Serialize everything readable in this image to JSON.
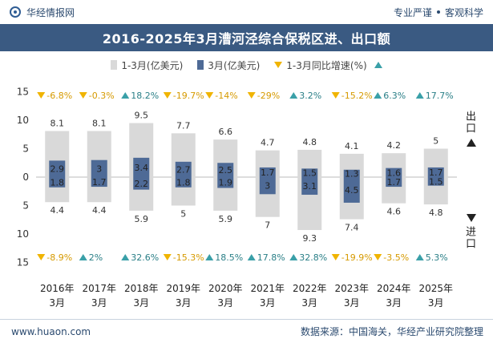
{
  "header": {
    "brand": "华经情报网",
    "tagline_left": "专业严谨",
    "tagline_right": "客观科学"
  },
  "title": "2016-2025年3月漕河泾综合保税区进、出口额",
  "legend": {
    "cum": "1-3月(亿美元)",
    "month": "3月(亿美元)",
    "yoy": "1-3月同比增速(%)"
  },
  "side_labels": {
    "export": "出口",
    "import": "进口"
  },
  "footer": {
    "url": "www.huaon.com",
    "source": "数据来源：中国海关，华经产业研究院整理"
  },
  "colors": {
    "cum_bar": "#d9d9d9",
    "month_bar": "#4e6a96",
    "yoy_down": "#f0b400",
    "yoy_up": "#3aa0a8",
    "title_bg": "#3a5a82"
  },
  "chart_data": {
    "type": "bar",
    "categories": [
      "2016年3月",
      "2017年3月",
      "2018年3月",
      "2019年3月",
      "2020年3月",
      "2021年3月",
      "2022年3月",
      "2023年3月",
      "2024年3月",
      "2025年3月"
    ],
    "ylim": [
      -15,
      15
    ],
    "y_ticks": [
      15,
      10,
      5,
      0,
      5,
      10,
      15
    ],
    "series": [
      {
        "name": "出口 1-3月(亿美元)",
        "values": [
          8.1,
          8.1,
          9.5,
          7.7,
          6.6,
          4.7,
          4.8,
          4.1,
          4.2,
          5
        ]
      },
      {
        "name": "出口 3月(亿美元)",
        "values": [
          2.9,
          3,
          3.4,
          2.7,
          2.5,
          1.7,
          1.5,
          1.3,
          1.6,
          1.7
        ]
      },
      {
        "name": "进口 1-3月(亿美元)",
        "values": [
          4.4,
          4.4,
          5.9,
          5,
          5.9,
          7,
          9.3,
          7.4,
          4.6,
          4.8
        ]
      },
      {
        "name": "进口 3月(亿美元)",
        "values": [
          1.8,
          1.7,
          2.2,
          1.8,
          1.9,
          3,
          3.1,
          4.5,
          1.7,
          1.5
        ]
      }
    ],
    "export_yoy": [
      "-6.8%",
      "-0.3%",
      "18.2%",
      "-19.7%",
      "-14%",
      "-29%",
      "3.2%",
      "-15.2%",
      "6.3%",
      "17.7%"
    ],
    "import_yoy": [
      "-8.9%",
      "2%",
      "32.6%",
      "-15.3%",
      "18.5%",
      "17.8%",
      "32.8%",
      "-19.9%",
      "-3.5%",
      "5.3%"
    ]
  }
}
